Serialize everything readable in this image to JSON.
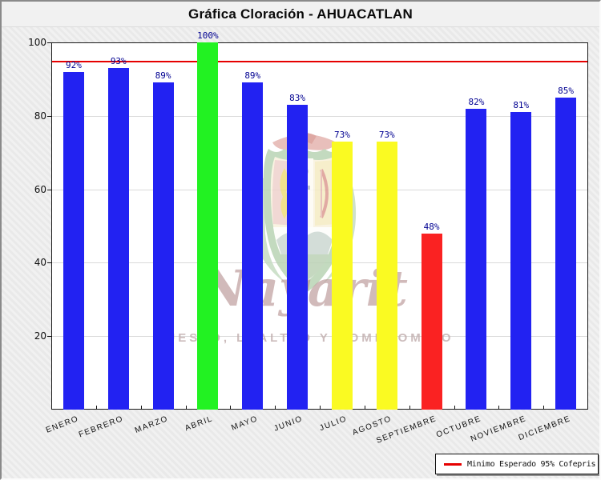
{
  "header": {
    "title": "Gráfica Cloración - AHUACATLAN"
  },
  "legend": {
    "label": "Minimo Esperado 95% Cofepris",
    "swatch_color": "#e60000"
  },
  "watermark": {
    "script": "Nayarit",
    "slogan": "PUESTO, LEALTAD Y COMPROMISO"
  },
  "chart_data": {
    "type": "bar",
    "title": "Gráfica Cloración - AHUACATLAN",
    "categories": [
      "ENERO",
      "FEBRERO",
      "MARZO",
      "ABRIL",
      "MAYO",
      "JUNIO",
      "JULIO",
      "AGOSTO",
      "SEPTIEMBRE",
      "OCTUBRE",
      "NOVIEMBRE",
      "DICIEMBRE"
    ],
    "values": [
      92,
      93,
      89,
      100,
      89,
      83,
      73,
      73,
      48,
      82,
      81,
      85
    ],
    "value_labels": [
      "92%",
      "93%",
      "89%",
      "100%",
      "89%",
      "83%",
      "73%",
      "73%",
      "48%",
      "82%",
      "81%",
      "85%"
    ],
    "bar_colors": [
      "#2222f2",
      "#2222f2",
      "#2222f2",
      "#22f222",
      "#2222f2",
      "#2222f2",
      "#fafa22",
      "#fafa22",
      "#fa2222",
      "#2222f2",
      "#2222f2",
      "#2222f2"
    ],
    "value_label_color": "#000091",
    "xlabel": "",
    "ylabel": "",
    "ylim": [
      0,
      100
    ],
    "yticks": [
      20,
      40,
      60,
      80,
      100
    ],
    "grid": "horizontal",
    "reference_line": {
      "value": 95,
      "color": "#e60000",
      "label": "Minimo Esperado 95% Cofepris"
    },
    "legend_position": "bottom-right"
  }
}
